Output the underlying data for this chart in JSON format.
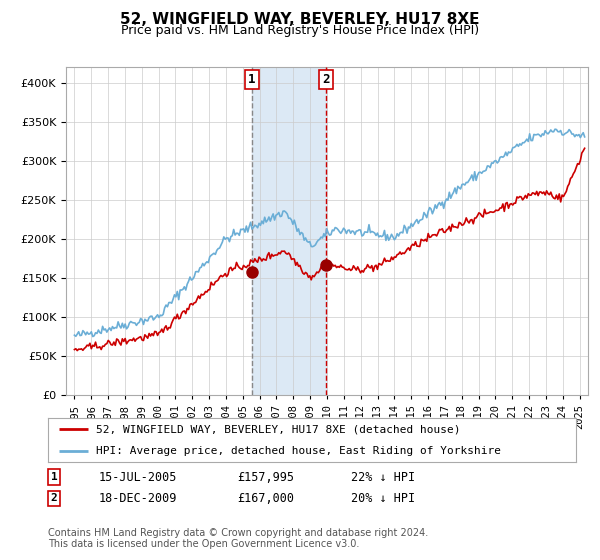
{
  "title": "52, WINGFIELD WAY, BEVERLEY, HU17 8XE",
  "subtitle": "Price paid vs. HM Land Registry's House Price Index (HPI)",
  "hpi_color": "#6baed6",
  "price_color": "#cc0000",
  "marker_color": "#990000",
  "vline1_color": "#888888",
  "vline2_color": "#cc0000",
  "shade_color": "#dce9f5",
  "grid_color": "#cccccc",
  "background_color": "#ffffff",
  "transaction1": {
    "date_label": "15-JUL-2005",
    "price": "£157,995",
    "hpi_diff": "22% ↓ HPI",
    "year": 2005.54,
    "price_val": 157995
  },
  "transaction2": {
    "date_label": "18-DEC-2009",
    "price": "£167,000",
    "hpi_diff": "20% ↓ HPI",
    "year": 2009.96,
    "price_val": 167000
  },
  "legend_line1": "52, WINGFIELD WAY, BEVERLEY, HU17 8XE (detached house)",
  "legend_line2": "HPI: Average price, detached house, East Riding of Yorkshire",
  "footer": "Contains HM Land Registry data © Crown copyright and database right 2024.\nThis data is licensed under the Open Government Licence v3.0.",
  "ylim": [
    0,
    420000
  ],
  "yticks": [
    0,
    50000,
    100000,
    150000,
    200000,
    250000,
    300000,
    350000,
    400000
  ],
  "xlim_start": 1994.5,
  "xlim_end": 2025.5
}
